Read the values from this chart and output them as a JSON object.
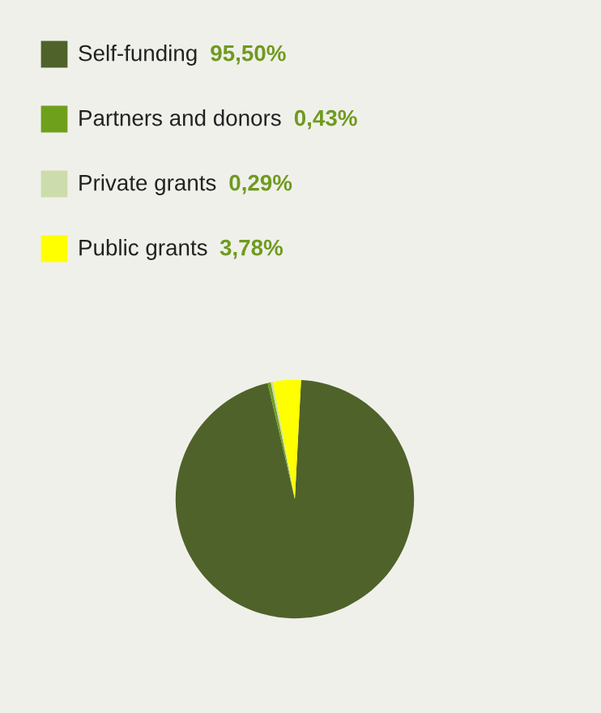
{
  "chart_data": {
    "type": "pie",
    "categories": [
      "Self-funding",
      "Partners and donors",
      "Private grants",
      "Public grants"
    ],
    "values": [
      95.5,
      0.43,
      0.29,
      3.78
    ],
    "value_labels": [
      "95,50%",
      "0,43%",
      "0,29%",
      "3,78%"
    ],
    "colors": [
      "#4f622a",
      "#6fa01c",
      "#cddcac",
      "#ffff00"
    ],
    "legend": "top left"
  }
}
